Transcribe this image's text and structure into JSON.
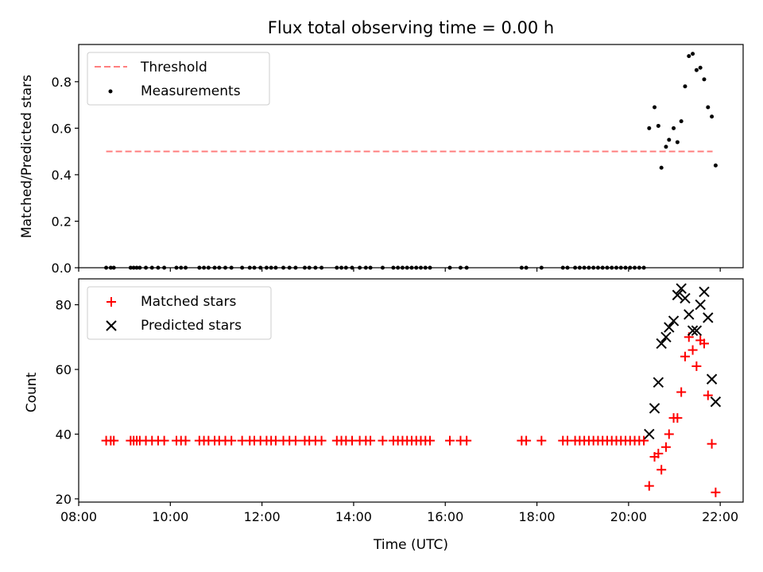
{
  "title": "Flux total observing time = 0.00 h",
  "chart_data": [
    {
      "type": "scatter",
      "panel": "top",
      "ylabel": "Matched/Predicted stars",
      "xlabel": "",
      "ylim": [
        0,
        0.96
      ],
      "yticks": [
        0.0,
        0.2,
        0.4,
        0.6,
        0.8
      ],
      "ytick_labels": [
        "0.0",
        "0.2",
        "0.4",
        "0.6",
        "0.8"
      ],
      "legend": {
        "position": "upper-left",
        "entries": [
          "Threshold",
          "Measurements"
        ]
      },
      "threshold": {
        "name": "Threshold",
        "value": 0.5,
        "x_start": "08:36",
        "x_end": "21:50",
        "color": "#ff7f7f"
      },
      "series": [
        {
          "name": "Measurements",
          "marker": "dot",
          "color": "#000000",
          "x": [
            "08:36",
            "08:42",
            "08:46",
            "09:08",
            "09:12",
            "09:16",
            "09:20",
            "09:28",
            "09:36",
            "09:44",
            "09:52",
            "10:08",
            "10:14",
            "10:20",
            "10:38",
            "10:44",
            "10:50",
            "10:58",
            "11:04",
            "11:12",
            "11:20",
            "11:34",
            "11:44",
            "11:50",
            "11:58",
            "12:06",
            "12:12",
            "12:18",
            "12:28",
            "12:36",
            "12:44",
            "12:56",
            "13:02",
            "13:10",
            "13:18",
            "13:38",
            "13:44",
            "13:50",
            "13:58",
            "14:08",
            "14:16",
            "14:22",
            "14:38",
            "14:52",
            "14:58",
            "15:04",
            "15:10",
            "15:16",
            "15:22",
            "15:28",
            "15:34",
            "15:40",
            "16:06",
            "16:20",
            "16:28",
            "17:40",
            "17:46",
            "18:06",
            "18:34",
            "18:40",
            "18:50",
            "18:56",
            "19:02",
            "19:08",
            "19:14",
            "19:20",
            "19:26",
            "19:32",
            "19:38",
            "19:44",
            "19:50",
            "19:56",
            "20:02",
            "20:08",
            "20:14",
            "20:20",
            "20:27",
            "20:34",
            "20:39",
            "20:43",
            "20:49",
            "20:53",
            "20:59",
            "21:04",
            "21:09",
            "21:14",
            "21:19",
            "21:24",
            "21:29",
            "21:34",
            "21:39",
            "21:44",
            "21:49",
            "21:54"
          ],
          "y": [
            0,
            0,
            0,
            0,
            0,
            0,
            0,
            0,
            0,
            0,
            0,
            0,
            0,
            0,
            0,
            0,
            0,
            0,
            0,
            0,
            0,
            0,
            0,
            0,
            0,
            0,
            0,
            0,
            0,
            0,
            0,
            0,
            0,
            0,
            0,
            0,
            0,
            0,
            0,
            0,
            0,
            0,
            0,
            0,
            0,
            0,
            0,
            0,
            0,
            0,
            0,
            0,
            0,
            0,
            0,
            0,
            0,
            0,
            0,
            0,
            0,
            0,
            0,
            0,
            0,
            0,
            0,
            0,
            0,
            0,
            0,
            0,
            0,
            0,
            0,
            0,
            0.6,
            0.69,
            0.61,
            0.43,
            0.52,
            0.55,
            0.6,
            0.54,
            0.63,
            0.78,
            0.91,
            0.92,
            0.85,
            0.86,
            0.81,
            0.69,
            0.65,
            0.44
          ]
        }
      ]
    },
    {
      "type": "scatter",
      "panel": "bottom",
      "xlabel": "Time (UTC)",
      "ylabel": "Count",
      "ylim": [
        19,
        88
      ],
      "yticks": [
        20,
        40,
        60,
        80
      ],
      "ytick_labels": [
        "20",
        "40",
        "60",
        "80"
      ],
      "xlim": [
        "08:00",
        "22:30"
      ],
      "xticks": [
        "08:00",
        "10:00",
        "12:00",
        "14:00",
        "16:00",
        "18:00",
        "20:00",
        "22:00"
      ],
      "legend": {
        "position": "upper-left",
        "entries": [
          "Matched stars",
          "Predicted stars"
        ]
      },
      "series": [
        {
          "name": "Matched stars",
          "marker": "plus",
          "color": "#ff0000",
          "x": [
            "08:36",
            "08:42",
            "08:46",
            "09:08",
            "09:12",
            "09:16",
            "09:20",
            "09:28",
            "09:36",
            "09:44",
            "09:52",
            "10:08",
            "10:14",
            "10:20",
            "10:38",
            "10:44",
            "10:50",
            "10:58",
            "11:04",
            "11:12",
            "11:20",
            "11:34",
            "11:44",
            "11:50",
            "11:58",
            "12:06",
            "12:12",
            "12:18",
            "12:28",
            "12:36",
            "12:44",
            "12:56",
            "13:02",
            "13:10",
            "13:18",
            "13:38",
            "13:44",
            "13:50",
            "13:58",
            "14:08",
            "14:16",
            "14:22",
            "14:38",
            "14:52",
            "14:58",
            "15:04",
            "15:10",
            "15:16",
            "15:22",
            "15:28",
            "15:34",
            "15:40",
            "16:06",
            "16:20",
            "16:28",
            "17:40",
            "17:46",
            "18:06",
            "18:34",
            "18:40",
            "18:50",
            "18:56",
            "19:02",
            "19:08",
            "19:14",
            "19:20",
            "19:26",
            "19:32",
            "19:38",
            "19:44",
            "19:50",
            "19:56",
            "20:02",
            "20:08",
            "20:14",
            "20:20",
            "20:27",
            "20:34",
            "20:39",
            "20:43",
            "20:49",
            "20:53",
            "20:59",
            "21:04",
            "21:09",
            "21:14",
            "21:19",
            "21:24",
            "21:29",
            "21:34",
            "21:39",
            "21:44",
            "21:49",
            "21:54"
          ],
          "y": [
            38,
            38,
            38,
            38,
            38,
            38,
            38,
            38,
            38,
            38,
            38,
            38,
            38,
            38,
            38,
            38,
            38,
            38,
            38,
            38,
            38,
            38,
            38,
            38,
            38,
            38,
            38,
            38,
            38,
            38,
            38,
            38,
            38,
            38,
            38,
            38,
            38,
            38,
            38,
            38,
            38,
            38,
            38,
            38,
            38,
            38,
            38,
            38,
            38,
            38,
            38,
            38,
            38,
            38,
            38,
            38,
            38,
            38,
            38,
            38,
            38,
            38,
            38,
            38,
            38,
            38,
            38,
            38,
            38,
            38,
            38,
            38,
            38,
            38,
            38,
            38,
            24,
            33,
            34,
            29,
            36,
            40,
            45,
            45,
            53,
            64,
            70,
            66,
            61,
            69,
            68,
            52,
            37,
            22
          ]
        },
        {
          "name": "Predicted stars",
          "marker": "x",
          "color": "#000000",
          "x": [
            "20:27",
            "20:34",
            "20:39",
            "20:43",
            "20:49",
            "20:53",
            "20:59",
            "21:04",
            "21:09",
            "21:14",
            "21:19",
            "21:24",
            "21:29",
            "21:34",
            "21:39",
            "21:44",
            "21:49",
            "21:54"
          ],
          "y": [
            40,
            48,
            56,
            68,
            70,
            73,
            75,
            83,
            85,
            82,
            77,
            72,
            72,
            80,
            84,
            76,
            57,
            50
          ]
        }
      ]
    }
  ]
}
